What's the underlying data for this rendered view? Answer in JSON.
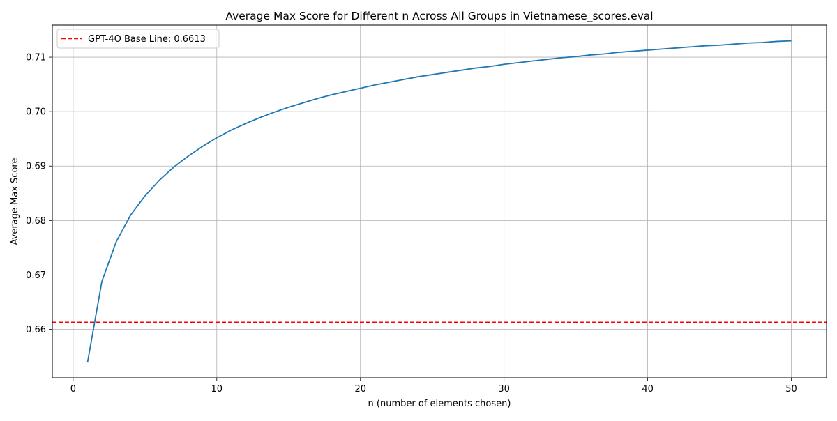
{
  "chart_data": {
    "type": "line",
    "title": "Average Max Score for Different n Across All Groups in Vietnamese_scores.eval",
    "xlabel": "n (number of elements chosen)",
    "ylabel": "Average Max Score",
    "xlim": [
      -1.45,
      52.45
    ],
    "ylim": [
      0.6511,
      0.7159
    ],
    "xticks": [
      0,
      10,
      20,
      30,
      40,
      50
    ],
    "yticks": [
      0.66,
      0.67,
      0.68,
      0.69,
      0.7,
      0.71
    ],
    "ytick_labels": [
      "0.66",
      "0.67",
      "0.68",
      "0.69",
      "0.70",
      "0.71"
    ],
    "grid": true,
    "legend_position": "upper-left",
    "series": [
      {
        "color": "#1f77b4",
        "x": [
          1,
          2,
          3,
          4,
          5,
          6,
          7,
          8,
          9,
          10,
          11,
          12,
          13,
          14,
          15,
          16,
          17,
          18,
          19,
          20,
          21,
          22,
          23,
          24,
          25,
          26,
          27,
          28,
          29,
          30,
          31,
          32,
          33,
          34,
          35,
          36,
          37,
          38,
          39,
          40,
          41,
          42,
          43,
          44,
          45,
          46,
          47,
          48,
          49,
          50
        ],
        "values": [
          0.6539,
          0.6688,
          0.6761,
          0.681,
          0.6845,
          0.6874,
          0.6898,
          0.6918,
          0.6936,
          0.6952,
          0.6966,
          0.6978,
          0.6989,
          0.6999,
          0.7008,
          0.7016,
          0.7024,
          0.7031,
          0.7037,
          0.7043,
          0.7049,
          0.7054,
          0.7059,
          0.7064,
          0.7068,
          0.7072,
          0.7076,
          0.708,
          0.7083,
          0.7087,
          0.709,
          0.7093,
          0.7096,
          0.7099,
          0.7101,
          0.7104,
          0.7106,
          0.7109,
          0.7111,
          0.7113,
          0.7115,
          0.7117,
          0.7119,
          0.7121,
          0.7122,
          0.7124,
          0.7126,
          0.7127,
          0.7129,
          0.713
        ]
      }
    ],
    "reference_line": {
      "label": "GPT-4O Base Line: 0.6613",
      "value": 0.6613,
      "color": "#ff0000",
      "style": "dashed"
    }
  }
}
